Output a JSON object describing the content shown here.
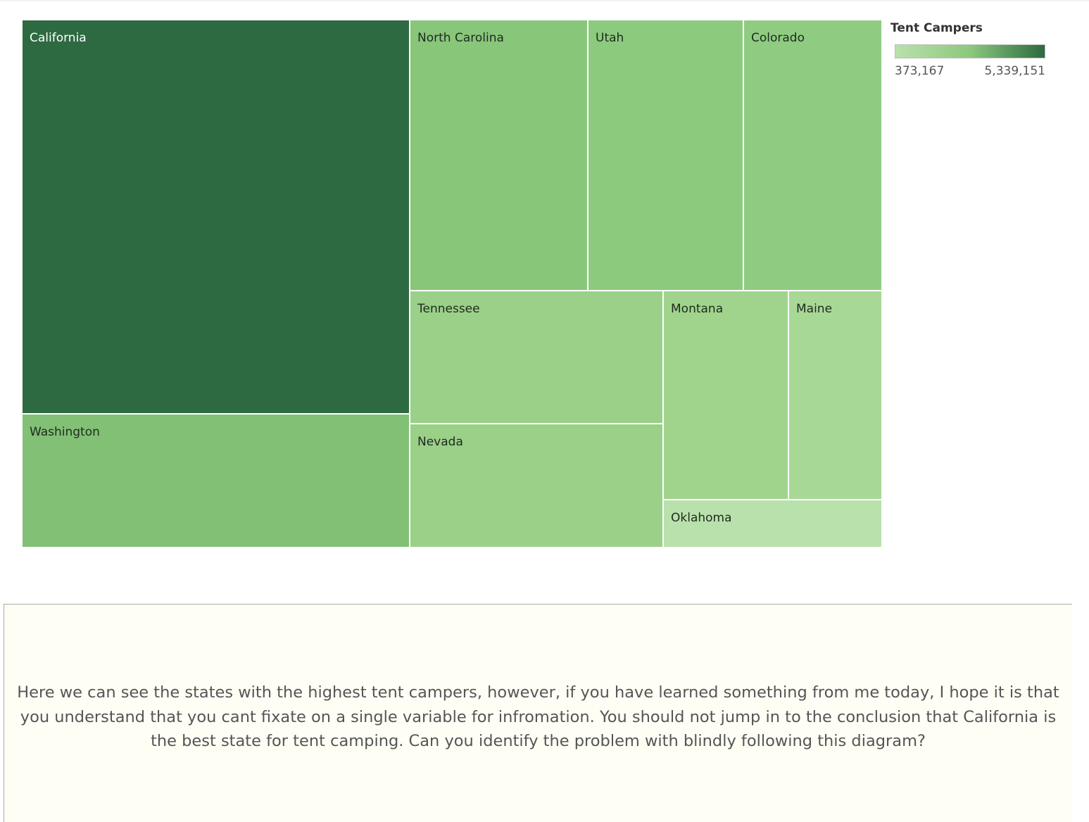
{
  "chart_data": {
    "type": "treemap",
    "measure": "Tent Campers",
    "legend": {
      "title": "Tent Campers",
      "min_label": "373,167",
      "max_label": "5,339,151",
      "min_value": 373167,
      "max_value": 5339151,
      "min_color": "#b9e1ab",
      "max_color": "#2c6a40",
      "placement": "top-right"
    },
    "items": [
      {
        "name": "California",
        "value": 5339151,
        "color": "#2e6a41"
      },
      {
        "name": "Washington",
        "value": 1820000,
        "color": "#82c075"
      },
      {
        "name": "North Carolina",
        "value": 1680000,
        "color": "#88c67a"
      },
      {
        "name": "Utah",
        "value": 1460000,
        "color": "#8ccb7e"
      },
      {
        "name": "Colorado",
        "value": 1300000,
        "color": "#8fcc81"
      },
      {
        "name": "Tennessee",
        "value": 1170000,
        "color": "#9ad088"
      },
      {
        "name": "Nevada",
        "value": 1140000,
        "color": "#9ad088"
      },
      {
        "name": "Montana",
        "value": 920000,
        "color": "#a0d48d"
      },
      {
        "name": "Maine",
        "value": 680000,
        "color": "#a8d896"
      },
      {
        "name": "Oklahoma",
        "value": 373167,
        "color": "#b9e1ab"
      }
    ]
  },
  "note": {
    "text": "Here we can see the states with the highest tent campers, however, if you have learned something from me today, I hope it is that you understand that you cant fixate on a single variable for infromation. You should not jump in to the conclusion that California is the best state for tent camping. Can you identify the problem with blindly following this diagram?",
    "background": "#fffef5"
  }
}
